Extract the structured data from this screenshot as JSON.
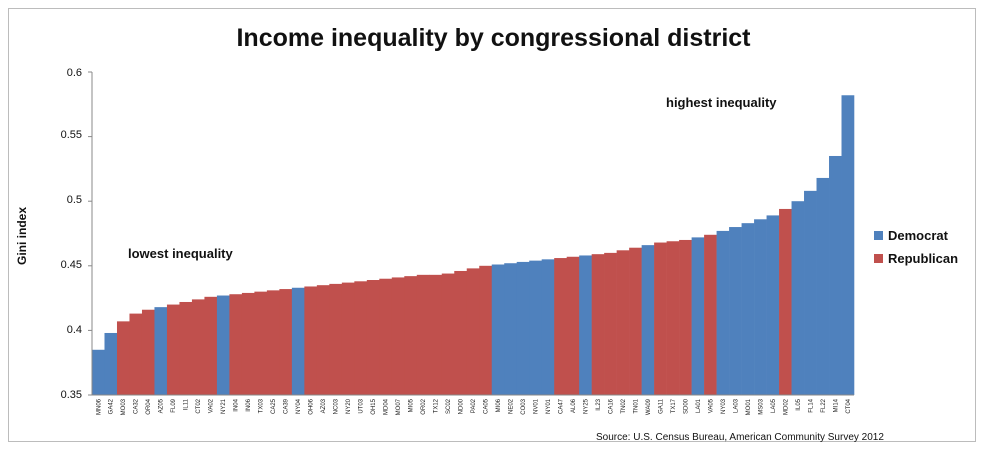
{
  "chart_data": {
    "type": "bar",
    "title": "Income inequality by congressional district",
    "ylabel": "Gini index",
    "ylim": [
      0.35,
      0.6
    ],
    "yticks": [
      "0.6",
      "0.55",
      "0.5",
      "0.45",
      "0.4",
      "0.35"
    ],
    "grid": false,
    "legend_position": "right",
    "series": [
      {
        "name": "Democrat",
        "color": "#4f81bd"
      },
      {
        "name": "Republican",
        "color": "#c0504d"
      }
    ],
    "categories": [
      "MN06",
      "GA42",
      "MO03",
      "CA32",
      "OR04",
      "AZ05",
      "FL09",
      "IL11",
      "CT02",
      "VA02",
      "NY21",
      "IN04",
      "IN06",
      "TX03",
      "CA25",
      "CA39",
      "NY04",
      "OH06",
      "AZ03",
      "NC03",
      "NY20",
      "UT03",
      "OH15",
      "MD04",
      "MO07",
      "MI05",
      "OR02",
      "TX12",
      "SC02",
      "ND00",
      "PA02",
      "CA05",
      "MI06",
      "NE02",
      "CO03",
      "NV01",
      "NY01",
      "CA47",
      "AL06",
      "NY25",
      "IL23",
      "CA16",
      "TN02",
      "TN01",
      "WA09",
      "GA11",
      "TX17",
      "SD00",
      "LA01",
      "VA05",
      "NY03",
      "LA03",
      "MO01",
      "MS03",
      "LA05",
      "MD02",
      "IL05",
      "FL14",
      "FL22",
      "MI14",
      "CT04"
    ],
    "values": [
      0.385,
      0.398,
      0.407,
      0.413,
      0.416,
      0.418,
      0.42,
      0.422,
      0.424,
      0.426,
      0.427,
      0.428,
      0.429,
      0.43,
      0.431,
      0.432,
      0.433,
      0.434,
      0.435,
      0.436,
      0.437,
      0.438,
      0.439,
      0.44,
      0.441,
      0.442,
      0.443,
      0.443,
      0.444,
      0.446,
      0.448,
      0.45,
      0.451,
      0.452,
      0.453,
      0.454,
      0.455,
      0.456,
      0.457,
      0.458,
      0.459,
      0.46,
      0.462,
      0.464,
      0.466,
      0.468,
      0.469,
      0.47,
      0.472,
      0.474,
      0.477,
      0.48,
      0.483,
      0.486,
      0.489,
      0.494,
      0.5,
      0.508,
      0.518,
      0.535,
      0.582
    ],
    "parties": [
      "D",
      "D",
      "R",
      "R",
      "R",
      "D",
      "R",
      "R",
      "R",
      "R",
      "D",
      "R",
      "R",
      "R",
      "R",
      "R",
      "D",
      "R",
      "R",
      "R",
      "R",
      "R",
      "R",
      "R",
      "R",
      "R",
      "R",
      "R",
      "R",
      "R",
      "R",
      "R",
      "D",
      "D",
      "D",
      "D",
      "D",
      "R",
      "R",
      "D",
      "R",
      "R",
      "R",
      "R",
      "D",
      "R",
      "R",
      "R",
      "D",
      "R",
      "D",
      "D",
      "D",
      "D",
      "D",
      "R",
      "D",
      "D",
      "D",
      "D",
      "D"
    ],
    "annotations": [
      "lowest inequality",
      "highest inequality"
    ],
    "source": "Source: U.S. Census Bureau, American Community Survey 2012"
  }
}
